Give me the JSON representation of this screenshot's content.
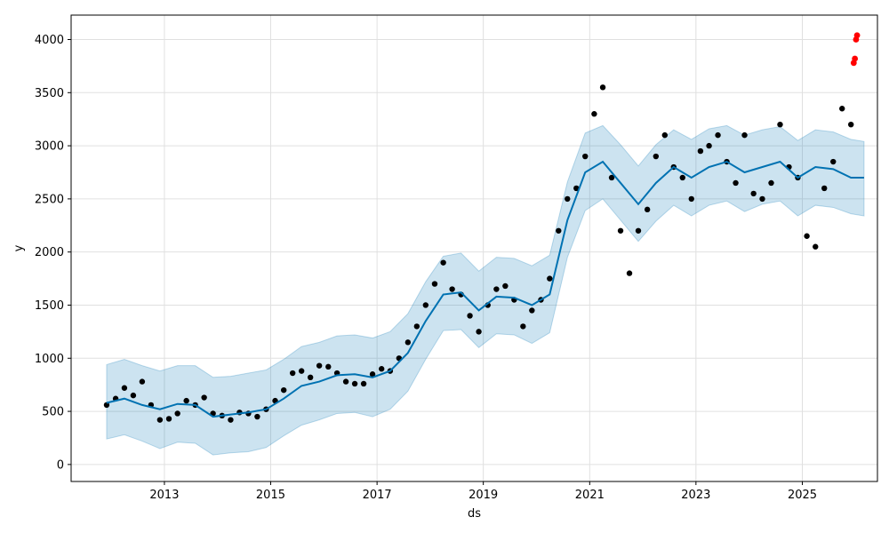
{
  "colors": {
    "background": "#ffffff",
    "frame": "#000000",
    "grid": "#e0e0e0",
    "forecast_line": "#0072B2",
    "interval_fill": "#0072B2",
    "observed_points": "#000000",
    "recent_points": "#ff0000"
  },
  "chart_data": {
    "type": "scatter",
    "xlabel": "ds",
    "ylabel": "y",
    "x_is_date": true,
    "xlim": [
      "2011-04-01",
      "2026-06-01"
    ],
    "ylim": [
      -160,
      4230
    ],
    "x_ticks": [
      {
        "value": "2013-01-01",
        "label": "2013"
      },
      {
        "value": "2015-01-01",
        "label": "2015"
      },
      {
        "value": "2017-01-01",
        "label": "2017"
      },
      {
        "value": "2019-01-01",
        "label": "2019"
      },
      {
        "value": "2021-01-01",
        "label": "2021"
      },
      {
        "value": "2023-01-01",
        "label": "2023"
      },
      {
        "value": "2025-01-01",
        "label": "2025"
      }
    ],
    "y_ticks": [
      0,
      500,
      1000,
      1500,
      2000,
      2500,
      3000,
      3500,
      4000
    ],
    "grid": true,
    "legend": "none",
    "series": [
      {
        "kind": "forecast_line",
        "points": [
          [
            "2011-12-01",
            580
          ],
          [
            "2012-04-01",
            620
          ],
          [
            "2012-08-01",
            560
          ],
          [
            "2012-12-01",
            520
          ],
          [
            "2013-04-01",
            570
          ],
          [
            "2013-08-01",
            560
          ],
          [
            "2013-12-01",
            450
          ],
          [
            "2014-04-01",
            470
          ],
          [
            "2014-08-01",
            490
          ],
          [
            "2014-12-01",
            520
          ],
          [
            "2015-04-01",
            620
          ],
          [
            "2015-08-01",
            740
          ],
          [
            "2015-12-01",
            780
          ],
          [
            "2016-04-01",
            840
          ],
          [
            "2016-08-01",
            850
          ],
          [
            "2016-12-01",
            820
          ],
          [
            "2017-04-01",
            880
          ],
          [
            "2017-08-01",
            1050
          ],
          [
            "2017-12-01",
            1350
          ],
          [
            "2018-04-01",
            1600
          ],
          [
            "2018-08-01",
            1620
          ],
          [
            "2018-12-01",
            1450
          ],
          [
            "2019-04-01",
            1580
          ],
          [
            "2019-08-01",
            1570
          ],
          [
            "2019-12-01",
            1500
          ],
          [
            "2020-04-01",
            1600
          ],
          [
            "2020-08-01",
            2300
          ],
          [
            "2020-12-01",
            2750
          ],
          [
            "2021-04-01",
            2850
          ],
          [
            "2021-08-01",
            2650
          ],
          [
            "2021-12-01",
            2450
          ],
          [
            "2022-04-01",
            2650
          ],
          [
            "2022-08-01",
            2800
          ],
          [
            "2022-12-01",
            2700
          ],
          [
            "2023-04-01",
            2800
          ],
          [
            "2023-08-01",
            2850
          ],
          [
            "2023-12-01",
            2750
          ],
          [
            "2024-04-01",
            2800
          ],
          [
            "2024-08-01",
            2850
          ],
          [
            "2024-12-01",
            2700
          ],
          [
            "2025-04-01",
            2800
          ],
          [
            "2025-08-01",
            2780
          ],
          [
            "2025-12-01",
            2700
          ],
          [
            "2026-03-01",
            2700
          ]
        ]
      },
      {
        "kind": "uncertainty_interval",
        "upper": [
          [
            "2011-12-01",
            940
          ],
          [
            "2012-04-01",
            990
          ],
          [
            "2012-08-01",
            930
          ],
          [
            "2012-12-01",
            880
          ],
          [
            "2013-04-01",
            930
          ],
          [
            "2013-08-01",
            930
          ],
          [
            "2013-12-01",
            820
          ],
          [
            "2014-04-01",
            830
          ],
          [
            "2014-08-01",
            860
          ],
          [
            "2014-12-01",
            890
          ],
          [
            "2015-04-01",
            990
          ],
          [
            "2015-08-01",
            1110
          ],
          [
            "2015-12-01",
            1150
          ],
          [
            "2016-04-01",
            1210
          ],
          [
            "2016-08-01",
            1220
          ],
          [
            "2016-12-01",
            1190
          ],
          [
            "2017-04-01",
            1250
          ],
          [
            "2017-08-01",
            1420
          ],
          [
            "2017-12-01",
            1720
          ],
          [
            "2018-04-01",
            1960
          ],
          [
            "2018-08-01",
            1990
          ],
          [
            "2018-12-01",
            1820
          ],
          [
            "2019-04-01",
            1950
          ],
          [
            "2019-08-01",
            1940
          ],
          [
            "2019-12-01",
            1870
          ],
          [
            "2020-04-01",
            1970
          ],
          [
            "2020-08-01",
            2660
          ],
          [
            "2020-12-01",
            3120
          ],
          [
            "2021-04-01",
            3190
          ],
          [
            "2021-08-01",
            3010
          ],
          [
            "2021-12-01",
            2810
          ],
          [
            "2022-04-01",
            3010
          ],
          [
            "2022-08-01",
            3150
          ],
          [
            "2022-12-01",
            3060
          ],
          [
            "2023-04-01",
            3160
          ],
          [
            "2023-08-01",
            3190
          ],
          [
            "2023-12-01",
            3100
          ],
          [
            "2024-04-01",
            3150
          ],
          [
            "2024-08-01",
            3180
          ],
          [
            "2024-12-01",
            3050
          ],
          [
            "2025-04-01",
            3150
          ],
          [
            "2025-08-01",
            3130
          ],
          [
            "2025-12-01",
            3060
          ],
          [
            "2026-03-01",
            3040
          ]
        ],
        "lower": [
          [
            "2011-12-01",
            240
          ],
          [
            "2012-04-01",
            280
          ],
          [
            "2012-08-01",
            220
          ],
          [
            "2012-12-01",
            150
          ],
          [
            "2013-04-01",
            210
          ],
          [
            "2013-08-01",
            200
          ],
          [
            "2013-12-01",
            90
          ],
          [
            "2014-04-01",
            110
          ],
          [
            "2014-08-01",
            120
          ],
          [
            "2014-12-01",
            160
          ],
          [
            "2015-04-01",
            270
          ],
          [
            "2015-08-01",
            370
          ],
          [
            "2015-12-01",
            420
          ],
          [
            "2016-04-01",
            480
          ],
          [
            "2016-08-01",
            490
          ],
          [
            "2016-12-01",
            450
          ],
          [
            "2017-04-01",
            520
          ],
          [
            "2017-08-01",
            690
          ],
          [
            "2017-12-01",
            990
          ],
          [
            "2018-04-01",
            1260
          ],
          [
            "2018-08-01",
            1270
          ],
          [
            "2018-12-01",
            1100
          ],
          [
            "2019-04-01",
            1230
          ],
          [
            "2019-08-01",
            1220
          ],
          [
            "2019-12-01",
            1140
          ],
          [
            "2020-04-01",
            1240
          ],
          [
            "2020-08-01",
            1950
          ],
          [
            "2020-12-01",
            2390
          ],
          [
            "2021-04-01",
            2500
          ],
          [
            "2021-08-01",
            2300
          ],
          [
            "2021-12-01",
            2100
          ],
          [
            "2022-04-01",
            2290
          ],
          [
            "2022-08-01",
            2440
          ],
          [
            "2022-12-01",
            2340
          ],
          [
            "2023-04-01",
            2440
          ],
          [
            "2023-08-01",
            2480
          ],
          [
            "2023-12-01",
            2380
          ],
          [
            "2024-04-01",
            2450
          ],
          [
            "2024-08-01",
            2480
          ],
          [
            "2024-12-01",
            2340
          ],
          [
            "2025-04-01",
            2440
          ],
          [
            "2025-08-01",
            2420
          ],
          [
            "2025-12-01",
            2360
          ],
          [
            "2026-03-01",
            2340
          ]
        ]
      },
      {
        "kind": "observed_points",
        "points": [
          [
            "2011-12-01",
            560
          ],
          [
            "2012-02-01",
            620
          ],
          [
            "2012-04-01",
            720
          ],
          [
            "2012-06-01",
            650
          ],
          [
            "2012-08-01",
            780
          ],
          [
            "2012-10-01",
            560
          ],
          [
            "2012-12-01",
            420
          ],
          [
            "2013-02-01",
            430
          ],
          [
            "2013-04-01",
            480
          ],
          [
            "2013-06-01",
            600
          ],
          [
            "2013-08-01",
            560
          ],
          [
            "2013-10-01",
            630
          ],
          [
            "2013-12-01",
            480
          ],
          [
            "2014-02-01",
            460
          ],
          [
            "2014-04-01",
            420
          ],
          [
            "2014-06-01",
            490
          ],
          [
            "2014-08-01",
            480
          ],
          [
            "2014-10-01",
            450
          ],
          [
            "2014-12-01",
            520
          ],
          [
            "2015-02-01",
            600
          ],
          [
            "2015-04-01",
            700
          ],
          [
            "2015-06-01",
            860
          ],
          [
            "2015-08-01",
            880
          ],
          [
            "2015-10-01",
            820
          ],
          [
            "2015-12-01",
            930
          ],
          [
            "2016-02-01",
            920
          ],
          [
            "2016-04-01",
            860
          ],
          [
            "2016-06-01",
            780
          ],
          [
            "2016-08-01",
            760
          ],
          [
            "2016-10-01",
            760
          ],
          [
            "2016-12-01",
            850
          ],
          [
            "2017-02-01",
            900
          ],
          [
            "2017-04-01",
            880
          ],
          [
            "2017-06-01",
            1000
          ],
          [
            "2017-08-01",
            1150
          ],
          [
            "2017-10-01",
            1300
          ],
          [
            "2017-12-01",
            1500
          ],
          [
            "2018-02-01",
            1700
          ],
          [
            "2018-04-01",
            1900
          ],
          [
            "2018-06-01",
            1650
          ],
          [
            "2018-08-01",
            1600
          ],
          [
            "2018-10-01",
            1400
          ],
          [
            "2018-12-01",
            1250
          ],
          [
            "2019-02-01",
            1500
          ],
          [
            "2019-04-01",
            1650
          ],
          [
            "2019-06-01",
            1680
          ],
          [
            "2019-08-01",
            1550
          ],
          [
            "2019-10-01",
            1300
          ],
          [
            "2019-12-01",
            1450
          ],
          [
            "2020-02-01",
            1550
          ],
          [
            "2020-04-01",
            1750
          ],
          [
            "2020-06-01",
            2200
          ],
          [
            "2020-08-01",
            2500
          ],
          [
            "2020-10-01",
            2600
          ],
          [
            "2020-12-01",
            2900
          ],
          [
            "2021-02-01",
            3300
          ],
          [
            "2021-04-01",
            3550
          ],
          [
            "2021-06-01",
            2700
          ],
          [
            "2021-08-01",
            2200
          ],
          [
            "2021-10-01",
            1800
          ],
          [
            "2021-12-01",
            2200
          ],
          [
            "2022-02-01",
            2400
          ],
          [
            "2022-04-01",
            2900
          ],
          [
            "2022-06-01",
            3100
          ],
          [
            "2022-08-01",
            2800
          ],
          [
            "2022-10-01",
            2700
          ],
          [
            "2022-12-01",
            2500
          ],
          [
            "2023-02-01",
            2950
          ],
          [
            "2023-04-01",
            3000
          ],
          [
            "2023-06-01",
            3100
          ],
          [
            "2023-08-01",
            2850
          ],
          [
            "2023-10-01",
            2650
          ],
          [
            "2023-12-01",
            3100
          ],
          [
            "2024-02-01",
            2550
          ],
          [
            "2024-04-01",
            2500
          ],
          [
            "2024-06-01",
            2650
          ],
          [
            "2024-08-01",
            3200
          ],
          [
            "2024-10-01",
            2800
          ],
          [
            "2024-12-01",
            2700
          ],
          [
            "2025-02-01",
            2150
          ],
          [
            "2025-04-01",
            2050
          ],
          [
            "2025-06-01",
            2600
          ],
          [
            "2025-08-01",
            2850
          ],
          [
            "2025-10-01",
            3350
          ],
          [
            "2025-12-01",
            3200
          ]
        ]
      },
      {
        "kind": "recent_points",
        "points": [
          [
            "2025-12-20",
            3780
          ],
          [
            "2025-12-28",
            3820
          ],
          [
            "2026-01-05",
            4000
          ],
          [
            "2026-01-12",
            4040
          ]
        ]
      }
    ]
  }
}
